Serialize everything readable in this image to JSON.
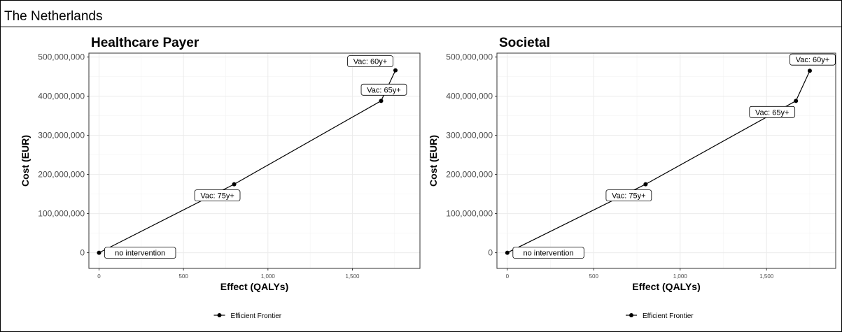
{
  "header": {
    "country": "The Netherlands"
  },
  "colors": {
    "line": "#000000",
    "grid": "#ebebeb",
    "panel_border": "#333333",
    "label_fill": "#ffffff"
  },
  "chart_data": [
    {
      "type": "line",
      "title": "Healthcare Payer",
      "xlabel": "Effect (QALYs)",
      "ylabel": "Cost (EUR)",
      "xlim": [
        -60,
        1900
      ],
      "ylim": [
        -40000000,
        510000000
      ],
      "x_ticks": [
        0,
        500,
        1000,
        1500
      ],
      "x_tick_labels": [
        "0",
        "500",
        "1,000",
        "1,500"
      ],
      "y_ticks": [
        0,
        100000000,
        200000000,
        300000000,
        400000000,
        500000000
      ],
      "y_tick_labels": [
        "0",
        "100,000,000",
        "200,000,000",
        "300,000,000",
        "400,000,000",
        "500,000,000"
      ],
      "grid": true,
      "legend_position": "bottom",
      "series": [
        {
          "name": "Efficient Frontier",
          "points": [
            {
              "x": 0,
              "y": 0,
              "label": "no intervention",
              "label_side": "right"
            },
            {
              "x": 800,
              "y": 175000000,
              "label": "Vac: 75y+",
              "label_side": "below"
            },
            {
              "x": 1670,
              "y": 388000000,
              "label": "Vac: 65y+",
              "label_side": "above"
            },
            {
              "x": 1755,
              "y": 466000000,
              "label": "Vac: 60y+",
              "label_side": "above-left"
            }
          ]
        }
      ]
    },
    {
      "type": "line",
      "title": "Societal",
      "xlabel": "Effect (QALYs)",
      "ylabel": "Cost (EUR)",
      "xlim": [
        -60,
        1900
      ],
      "ylim": [
        -40000000,
        510000000
      ],
      "x_ticks": [
        0,
        500,
        1000,
        1500
      ],
      "x_tick_labels": [
        "0",
        "500",
        "1,000",
        "1,500"
      ],
      "y_ticks": [
        0,
        100000000,
        200000000,
        300000000,
        400000000,
        500000000
      ],
      "y_tick_labels": [
        "0",
        "100,000,000",
        "200,000,000",
        "300,000,000",
        "400,000,000",
        "500,000,000"
      ],
      "grid": true,
      "legend_position": "bottom",
      "series": [
        {
          "name": "Efficient Frontier",
          "points": [
            {
              "x": 0,
              "y": 0,
              "label": "no intervention",
              "label_side": "right"
            },
            {
              "x": 800,
              "y": 175000000,
              "label": "Vac: 75y+",
              "label_side": "below"
            },
            {
              "x": 1670,
              "y": 388000000,
              "label": "Vac: 65y+",
              "label_side": "below-left"
            },
            {
              "x": 1750,
              "y": 465000000,
              "label": "Vac: 60y+",
              "label_side": "above"
            }
          ]
        }
      ]
    }
  ]
}
